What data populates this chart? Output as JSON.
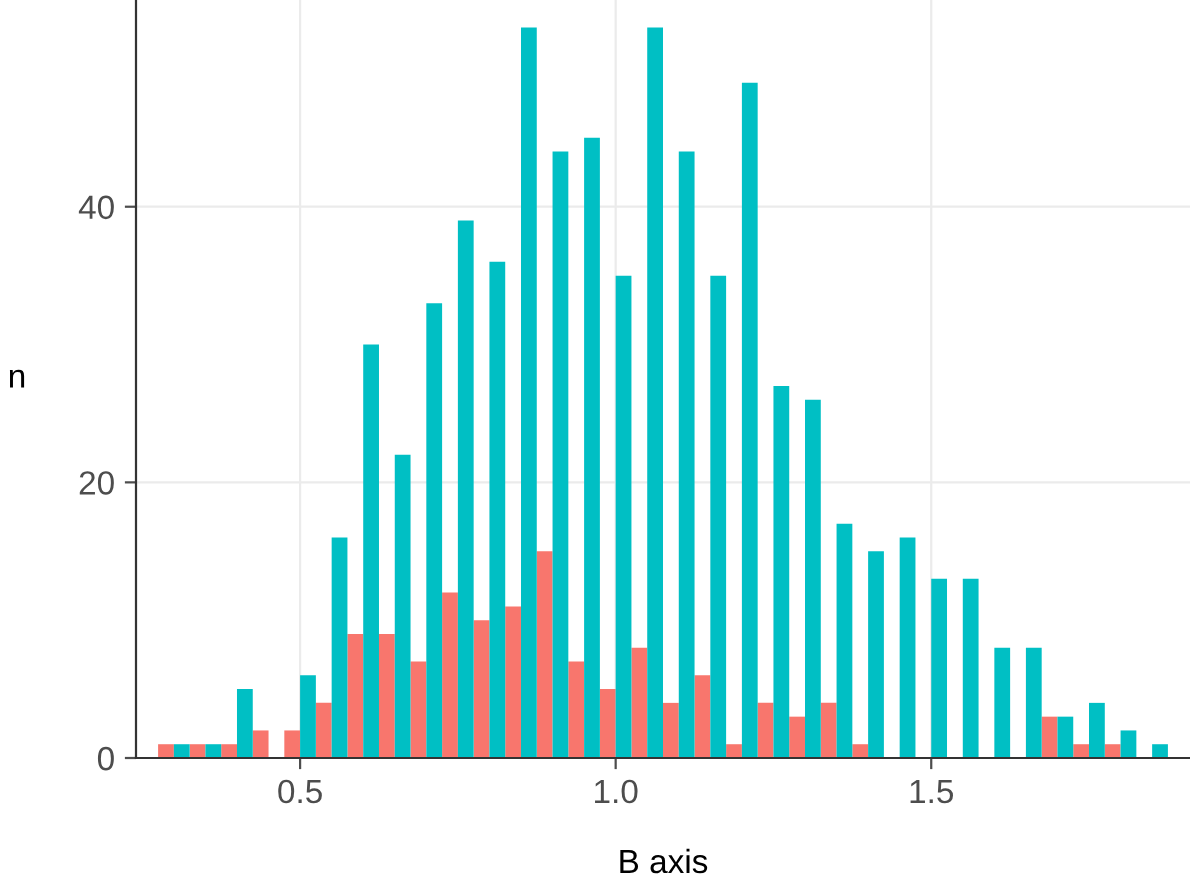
{
  "chart_data": {
    "type": "histogram",
    "xlabel": "B axis",
    "ylabel": "n",
    "bins": [
      0.275,
      0.325,
      0.375,
      0.425,
      0.475,
      0.525,
      0.575,
      0.625,
      0.675,
      0.725,
      0.775,
      0.825,
      0.875,
      0.925,
      0.975,
      1.025,
      1.075,
      1.125,
      1.175,
      1.225,
      1.275,
      1.325,
      1.375,
      1.425,
      1.475,
      1.525,
      1.575,
      1.625,
      1.675,
      1.725,
      1.775,
      1.825,
      1.875
    ],
    "series": [
      {
        "color": "#f8766d",
        "values": [
          1,
          1,
          1,
          2,
          2,
          4,
          9,
          9,
          7,
          12,
          10,
          11,
          15,
          7,
          5,
          8,
          4,
          6,
          1,
          4,
          3,
          4,
          1,
          0,
          0,
          0,
          0,
          0,
          3,
          1,
          1,
          0
        ]
      },
      {
        "color": "#00bfc4",
        "values": [
          1,
          1,
          5,
          0,
          6,
          16,
          30,
          22,
          33,
          39,
          36,
          53,
          44,
          45,
          35,
          53,
          44,
          35,
          49,
          27,
          26,
          17,
          15,
          16,
          13,
          13,
          8,
          8,
          3,
          4,
          2,
          1
        ]
      }
    ],
    "xlim": [
      0.24,
      1.91
    ],
    "ylim": [
      0,
      55
    ],
    "xticks": [
      0.5,
      {
        "value": 1,
        "label": "1.0"
      },
      1.5
    ],
    "yticks": [
      0,
      20,
      40
    ],
    "grid": true
  }
}
